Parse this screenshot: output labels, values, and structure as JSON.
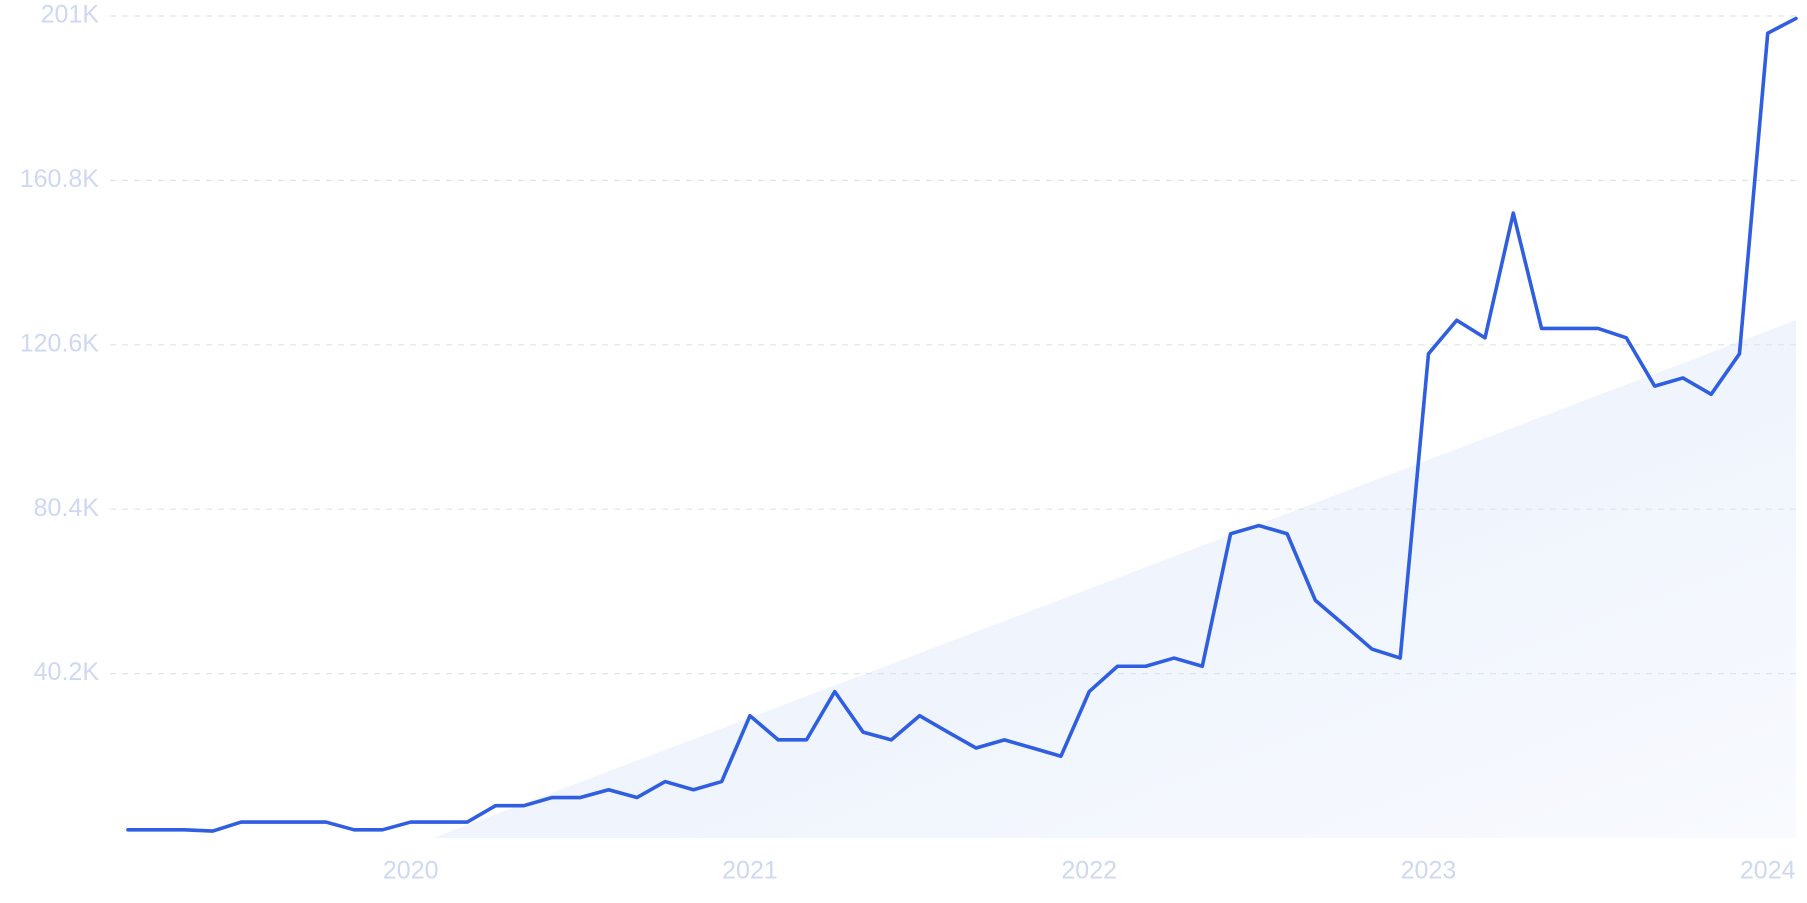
{
  "chart_data": {
    "type": "line",
    "x": [
      "2019-03",
      "2019-04",
      "2019-05",
      "2019-06",
      "2019-07",
      "2019-08",
      "2019-09",
      "2019-10",
      "2019-11",
      "2019-12",
      "2020-01",
      "2020-02",
      "2020-03",
      "2020-04",
      "2020-05",
      "2020-06",
      "2020-07",
      "2020-08",
      "2020-09",
      "2020-10",
      "2020-11",
      "2020-12",
      "2021-01",
      "2021-02",
      "2021-03",
      "2021-04",
      "2021-05",
      "2021-06",
      "2021-07",
      "2021-08",
      "2021-09",
      "2021-10",
      "2021-11",
      "2021-12",
      "2022-01",
      "2022-02",
      "2022-03",
      "2022-04",
      "2022-05",
      "2022-06",
      "2022-07",
      "2022-08",
      "2022-09",
      "2022-10",
      "2022-11",
      "2022-12",
      "2023-01",
      "2023-02",
      "2023-03",
      "2023-04",
      "2023-05",
      "2023-06",
      "2023-07",
      "2023-08",
      "2023-09",
      "2023-10",
      "2023-11",
      "2023-12",
      "2024-01",
      "2024-02"
    ],
    "series": [
      {
        "color": "#2f5fe0",
        "values": [
          2000,
          2000,
          2000,
          1700,
          3900,
          3900,
          3900,
          3900,
          2000,
          2000,
          3900,
          3900,
          3900,
          7900,
          7900,
          9900,
          9900,
          11800,
          9900,
          13800,
          11800,
          13800,
          29900,
          24000,
          24000,
          35800,
          25900,
          24000,
          29900,
          25900,
          22000,
          24000,
          22000,
          20000,
          35800,
          42000,
          42000,
          44000,
          42000,
          74400,
          76400,
          74400,
          58100,
          52200,
          46200,
          44000,
          118400,
          126600,
          122300,
          152800,
          124600,
          124600,
          124600,
          122300,
          110500,
          112500,
          108500,
          118400,
          196800,
          200400
        ]
      }
    ],
    "xlim": [
      "2019-03",
      "2024-02"
    ],
    "xticks": [
      2020,
      2021,
      2022,
      2023,
      2024
    ],
    "ylim": [
      0,
      201000
    ],
    "yticks": [
      {
        "value": 40200,
        "label": "40.2K"
      },
      {
        "value": 80400,
        "label": "80.4K"
      },
      {
        "value": 120600,
        "label": "120.6K"
      },
      {
        "value": 160800,
        "label": "160.8K"
      },
      {
        "value": 201000,
        "label": "201K"
      }
    ],
    "grid": true
  }
}
